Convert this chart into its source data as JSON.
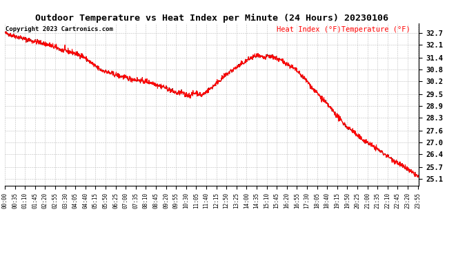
{
  "title": "Outdoor Temperature vs Heat Index per Minute (24 Hours) 20230106",
  "copyright": "Copyright 2023 Cartronics.com",
  "legend_heat": "Heat Index (°F)",
  "legend_temp": "Temperature (°F)",
  "heat_color": "#ff0000",
  "temp_color": "#880000",
  "background_color": "#ffffff",
  "grid_color": "#bbbbbb",
  "yticks": [
    25.1,
    25.7,
    26.4,
    27.0,
    27.6,
    28.3,
    28.9,
    29.5,
    30.2,
    30.8,
    31.4,
    32.1,
    32.7
  ],
  "ylim": [
    24.75,
    33.2
  ],
  "title_fontsize": 9.5,
  "copyright_fontsize": 6.5,
  "legend_fontsize": 7.5,
  "ytick_fontsize": 7.5,
  "xtick_fontsize": 5.5
}
